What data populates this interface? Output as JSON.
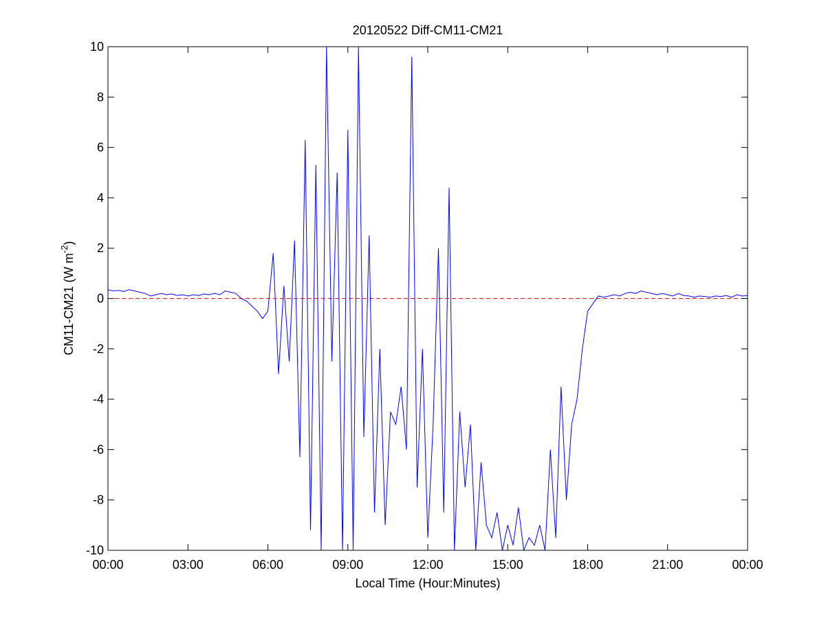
{
  "chart_data": {
    "type": "line",
    "title": "20120522 Diff-CM11-CM21",
    "xlabel": "Local Time (Hour:Minutes)",
    "ylabel": {
      "text": "CM11-CM21 (W m",
      "superscript": "-2",
      "suffix": ")"
    },
    "xlim": [
      0,
      24
    ],
    "ylim": [
      -10,
      10
    ],
    "xticks": [
      {
        "value": 0,
        "label": "00:00"
      },
      {
        "value": 3,
        "label": "03:00"
      },
      {
        "value": 6,
        "label": "06:00"
      },
      {
        "value": 9,
        "label": "09:00"
      },
      {
        "value": 12,
        "label": "12:00"
      },
      {
        "value": 15,
        "label": "15:00"
      },
      {
        "value": 18,
        "label": "18:00"
      },
      {
        "value": 21,
        "label": "21:00"
      },
      {
        "value": 24,
        "label": "00:00"
      }
    ],
    "yticks": [
      -10,
      -8,
      -6,
      -4,
      -2,
      0,
      2,
      4,
      6,
      8,
      10
    ],
    "reference_line": {
      "value": 0,
      "color": "#ff0000"
    },
    "x": [
      0,
      0.2,
      0.4,
      0.6,
      0.8,
      1,
      1.2,
      1.4,
      1.6,
      1.8,
      2,
      2.2,
      2.4,
      2.6,
      2.8,
      3,
      3.2,
      3.4,
      3.6,
      3.8,
      4,
      4.2,
      4.4,
      4.6,
      4.8,
      5,
      5.2,
      5.4,
      5.6,
      5.8,
      6,
      6.2,
      6.4,
      6.6,
      6.8,
      7,
      7.2,
      7.4,
      7.6,
      7.8,
      8,
      8.2,
      8.4,
      8.6,
      8.8,
      9,
      9.2,
      9.4,
      9.6,
      9.8,
      10,
      10.2,
      10.4,
      10.6,
      10.8,
      11,
      11.2,
      11.4,
      11.6,
      11.8,
      12,
      12.2,
      12.4,
      12.6,
      12.8,
      13,
      13.2,
      13.4,
      13.6,
      13.8,
      14,
      14.2,
      14.4,
      14.6,
      14.8,
      15,
      15.2,
      15.4,
      15.6,
      15.8,
      16,
      16.2,
      16.4,
      16.6,
      16.8,
      17,
      17.2,
      17.4,
      17.6,
      17.8,
      18,
      18.2,
      18.4,
      18.6,
      18.8,
      19,
      19.2,
      19.4,
      19.6,
      19.8,
      20,
      20.2,
      20.4,
      20.6,
      20.8,
      21,
      21.2,
      21.4,
      21.6,
      21.8,
      22,
      22.2,
      22.4,
      22.6,
      22.8,
      23,
      23.2,
      23.4,
      23.6,
      23.8,
      24
    ],
    "series": [
      {
        "name": "Diff-CM11-CM21",
        "color": "#0000ff",
        "values": [
          0.35,
          0.3,
          0.32,
          0.28,
          0.35,
          0.3,
          0.25,
          0.2,
          0.1,
          0.15,
          0.2,
          0.15,
          0.18,
          0.12,
          0.15,
          0.1,
          0.15,
          0.12,
          0.18,
          0.15,
          0.2,
          0.15,
          0.3,
          0.25,
          0.2,
          0.0,
          -0.1,
          -0.3,
          -0.5,
          -0.8,
          -0.5,
          1.8,
          -3.0,
          0.5,
          -2.5,
          2.3,
          -6.3,
          6.3,
          -9.2,
          5.3,
          -10,
          10,
          -2.5,
          5.0,
          -10,
          6.7,
          -10,
          10,
          -5.5,
          2.5,
          -8.5,
          -2.0,
          -9.0,
          -4.5,
          -5.0,
          -3.5,
          -6.0,
          9.6,
          -7.5,
          -2.0,
          -9.5,
          -5.0,
          2.0,
          -8.5,
          4.4,
          -10,
          -4.5,
          -7.5,
          -5.0,
          -10,
          -6.5,
          -9.0,
          -9.5,
          -8.5,
          -10,
          -9.0,
          -9.8,
          -8.3,
          -10,
          -9.5,
          -9.8,
          -9.0,
          -10,
          -6.0,
          -9.5,
          -3.5,
          -8.0,
          -5.0,
          -4.0,
          -2.0,
          -0.5,
          -0.2,
          0.1,
          0.05,
          0.1,
          0.15,
          0.1,
          0.2,
          0.25,
          0.2,
          0.3,
          0.25,
          0.2,
          0.15,
          0.2,
          0.15,
          0.1,
          0.2,
          0.12,
          0.1,
          0.05,
          0.1,
          0.08,
          0.05,
          0.1,
          0.08,
          0.12,
          0.05,
          0.15,
          0.1,
          0.12
        ]
      }
    ]
  }
}
